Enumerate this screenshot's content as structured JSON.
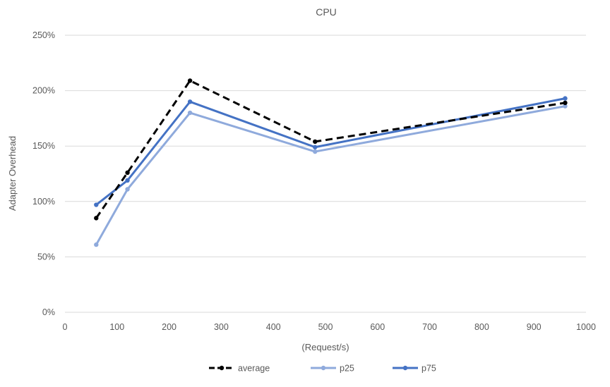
{
  "chart_data": {
    "type": "line",
    "title": "CPU",
    "xlabel": "(Request/s)",
    "ylabel": "Adapter Overhead",
    "xlim": [
      0,
      1000
    ],
    "ylim": [
      0,
      2.5
    ],
    "x_ticks": [
      "0",
      "100",
      "200",
      "300",
      "400",
      "500",
      "600",
      "700",
      "800",
      "900",
      "1000"
    ],
    "y_ticks": [
      "0%",
      "50%",
      "100%",
      "150%",
      "200%",
      "250%"
    ],
    "grid": true,
    "legend_position": "bottom",
    "series": [
      {
        "name": "average",
        "color": "#000000",
        "dashed": true,
        "x": [
          60,
          120,
          240,
          480,
          960
        ],
        "y": [
          0.85,
          1.26,
          2.09,
          1.54,
          1.89
        ]
      },
      {
        "name": "p25",
        "color": "#8faadc",
        "dashed": false,
        "x": [
          60,
          120,
          240,
          480,
          960
        ],
        "y": [
          0.61,
          1.11,
          1.8,
          1.45,
          1.86
        ]
      },
      {
        "name": "p75",
        "color": "#4472c4",
        "dashed": false,
        "x": [
          60,
          120,
          240,
          480,
          960
        ],
        "y": [
          0.97,
          1.19,
          1.9,
          1.49,
          1.93
        ]
      }
    ]
  }
}
